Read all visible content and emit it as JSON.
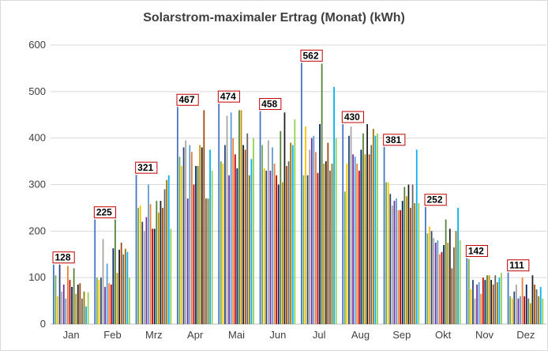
{
  "chart_data": {
    "type": "bar",
    "title": "Solarstrom-maximaler Ertrag (Monat) (kWh)",
    "categories": [
      "Jan",
      "Feb",
      "Mrz",
      "Apr",
      "Mai",
      "Jun",
      "Jul",
      "Aug",
      "Sep",
      "Okt",
      "Nov",
      "Dez"
    ],
    "ylim": [
      0,
      600
    ],
    "yticks": [
      0,
      100,
      200,
      300,
      400,
      500,
      600
    ],
    "grid": true,
    "peak_labels": [
      128,
      225,
      321,
      467,
      474,
      458,
      562,
      430,
      381,
      252,
      142,
      111
    ],
    "series_colors": [
      "#4472c4",
      "#70ad47",
      "#ffc000",
      "#264478",
      "#a5a5a5",
      "#7030a0",
      "#5b9bd5",
      "#ed7d31",
      "#c00000",
      "#002060",
      "#548235",
      "#bf9000",
      "#1f1f1f",
      "#9e480e",
      "#636363",
      "#997300",
      "#00b0f0",
      "#92d050"
    ],
    "values": [
      [
        128,
        105,
        60,
        128,
        70,
        85,
        55,
        125,
        95,
        80,
        120,
        65,
        85,
        88,
        55,
        70,
        38,
        68
      ],
      [
        225,
        100,
        95,
        100,
        183,
        80,
        130,
        88,
        85,
        163,
        225,
        110,
        160,
        175,
        150,
        162,
        155,
        100
      ],
      [
        321,
        250,
        255,
        220,
        200,
        230,
        300,
        258,
        205,
        205,
        265,
        240,
        265,
        250,
        290,
        310,
        320,
        205
      ],
      [
        467,
        360,
        340,
        380,
        395,
        270,
        385,
        370,
        300,
        340,
        340,
        385,
        380,
        460,
        270,
        270,
        375,
        330
      ],
      [
        474,
        350,
        345,
        385,
        448,
        320,
        455,
        400,
        365,
        335,
        460,
        460,
        385,
        375,
        410,
        320,
        355,
        400
      ],
      [
        458,
        385,
        335,
        330,
        395,
        330,
        380,
        345,
        320,
        300,
        415,
        305,
        455,
        340,
        350,
        390,
        385,
        440
      ],
      [
        562,
        320,
        425,
        320,
        375,
        400,
        405,
        370,
        325,
        430,
        560,
        345,
        350,
        390,
        330,
        345,
        510,
        400
      ],
      [
        430,
        285,
        345,
        405,
        425,
        365,
        360,
        345,
        330,
        375,
        410,
        365,
        430,
        365,
        385,
        420,
        405,
        410
      ],
      [
        381,
        305,
        305,
        280,
        255,
        265,
        270,
        245,
        245,
        265,
        295,
        275,
        300,
        250,
        300,
        260,
        375,
        260
      ],
      [
        252,
        195,
        210,
        200,
        185,
        175,
        180,
        150,
        155,
        170,
        225,
        175,
        205,
        120,
        165,
        200,
        250,
        180
      ],
      [
        142,
        140,
        75,
        95,
        55,
        85,
        90,
        65,
        100,
        95,
        105,
        105,
        95,
        85,
        105,
        90,
        100,
        110
      ],
      [
        111,
        60,
        55,
        70,
        85,
        55,
        60,
        100,
        60,
        85,
        55,
        45,
        105,
        85,
        75,
        60,
        80,
        55
      ]
    ]
  }
}
